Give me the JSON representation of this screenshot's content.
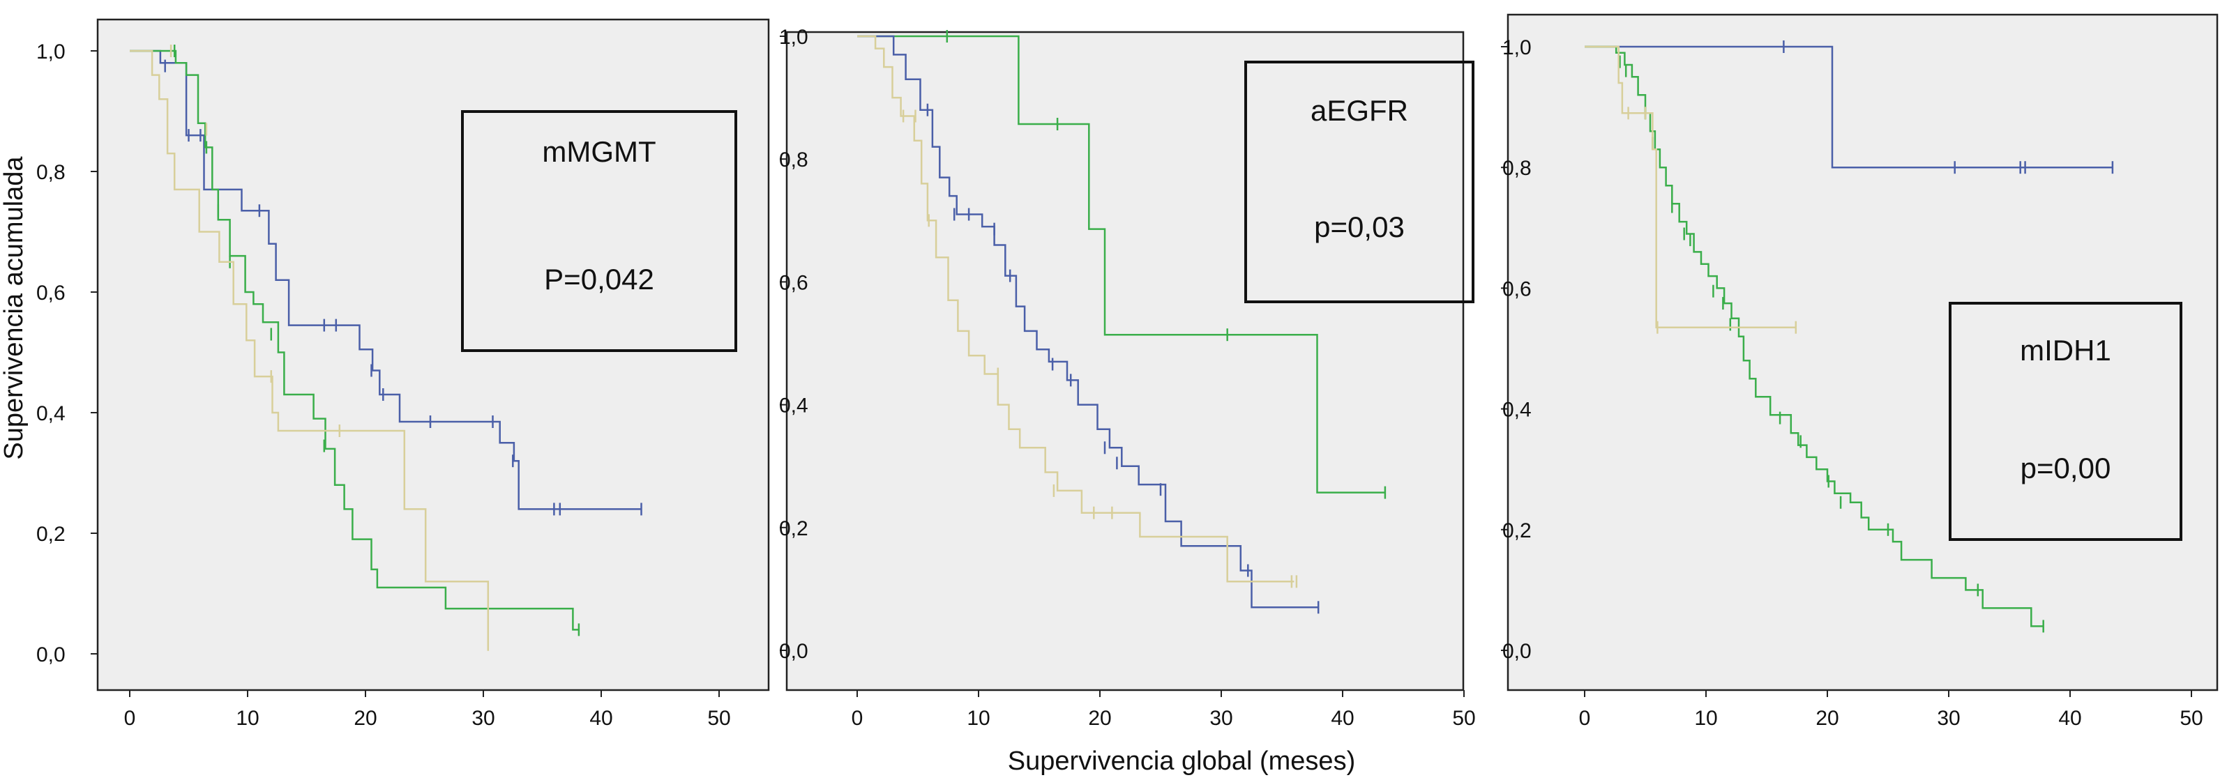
{
  "figure": {
    "ylabel": "Supervivencia acumulada",
    "xlabel": "Supervivencia global (meses)"
  },
  "colors": {
    "blue": "#4a5fa8",
    "green": "#3aae4a",
    "tan": "#d8cf9a",
    "panel_background": "#eeeeee",
    "frame": "#222222"
  },
  "chart_data": [
    {
      "type": "line",
      "subtype": "kaplan-meier",
      "panel_label": "mMGMT",
      "annotation": "P=0,042",
      "xlim": [
        0,
        50
      ],
      "ylim": [
        0,
        1
      ],
      "xticks": [
        "0",
        "10",
        "20",
        "30",
        "40",
        "50"
      ],
      "yticks": [
        "0,0",
        "0,2",
        "0,4",
        "0,6",
        "0,8",
        "1,0"
      ],
      "series": [
        {
          "color": "blue",
          "steps": [
            [
              0,
              1.0
            ],
            [
              2.6,
              0.98
            ],
            [
              4.8,
              0.86
            ],
            [
              6.3,
              0.77
            ],
            [
              9.5,
              0.735
            ],
            [
              11.8,
              0.68
            ],
            [
              12.4,
              0.62
            ],
            [
              13.5,
              0.545
            ],
            [
              19.5,
              0.505
            ],
            [
              20.6,
              0.47
            ],
            [
              21.2,
              0.43
            ],
            [
              22.9,
              0.385
            ],
            [
              31.4,
              0.35
            ],
            [
              32.6,
              0.32
            ],
            [
              33.0,
              0.24
            ],
            [
              43.4,
              0.24
            ]
          ],
          "censored": [
            [
              3.0,
              0.975
            ],
            [
              5.0,
              0.86
            ],
            [
              6.0,
              0.86
            ],
            [
              11.0,
              0.735
            ],
            [
              16.5,
              0.545
            ],
            [
              17.5,
              0.545
            ],
            [
              20.5,
              0.47
            ],
            [
              21.5,
              0.43
            ],
            [
              25.5,
              0.385
            ],
            [
              30.8,
              0.385
            ],
            [
              32.5,
              0.32
            ],
            [
              36.0,
              0.24
            ],
            [
              36.5,
              0.24
            ],
            [
              43.4,
              0.24
            ]
          ]
        },
        {
          "color": "green",
          "steps": [
            [
              0,
              1.0
            ],
            [
              3.9,
              0.98
            ],
            [
              4.8,
              0.96
            ],
            [
              5.8,
              0.88
            ],
            [
              6.4,
              0.84
            ],
            [
              7.0,
              0.77
            ],
            [
              7.5,
              0.72
            ],
            [
              8.5,
              0.66
            ],
            [
              9.8,
              0.6
            ],
            [
              10.5,
              0.58
            ],
            [
              11.3,
              0.55
            ],
            [
              12.6,
              0.5
            ],
            [
              13.1,
              0.43
            ],
            [
              15.6,
              0.39
            ],
            [
              16.6,
              0.34
            ],
            [
              17.4,
              0.28
            ],
            [
              18.2,
              0.24
            ],
            [
              18.9,
              0.19
            ],
            [
              20.5,
              0.14
            ],
            [
              21.0,
              0.11
            ],
            [
              26.8,
              0.075
            ],
            [
              37.6,
              0.04
            ],
            [
              38.1,
              0.04
            ]
          ],
          "censored": [
            [
              3.8,
              1.0
            ],
            [
              6.5,
              0.84
            ],
            [
              7.5,
              0.735
            ],
            [
              8.5,
              0.65
            ],
            [
              12.0,
              0.53
            ],
            [
              16.5,
              0.345
            ],
            [
              38.1,
              0.04
            ]
          ]
        },
        {
          "color": "tan",
          "steps": [
            [
              0,
              1.0
            ],
            [
              1.9,
              0.96
            ],
            [
              2.5,
              0.92
            ],
            [
              3.2,
              0.83
            ],
            [
              3.8,
              0.77
            ],
            [
              5.9,
              0.7
            ],
            [
              7.6,
              0.65
            ],
            [
              8.8,
              0.58
            ],
            [
              9.9,
              0.52
            ],
            [
              10.6,
              0.46
            ],
            [
              12.1,
              0.4
            ],
            [
              12.6,
              0.37
            ],
            [
              23.3,
              0.24
            ],
            [
              25.1,
              0.12
            ],
            [
              30.4,
              0.005
            ]
          ],
          "censored": [
            [
              3.5,
              1.0
            ],
            [
              6.5,
              0.87
            ],
            [
              12.0,
              0.46
            ],
            [
              17.8,
              0.37
            ]
          ]
        }
      ]
    },
    {
      "type": "line",
      "subtype": "kaplan-meier",
      "panel_label": "aEGFR",
      "annotation": "p=0,03",
      "xlim": [
        0,
        50
      ],
      "ylim": [
        0,
        1
      ],
      "xticks": [
        "0",
        "10",
        "20",
        "30",
        "40",
        "50"
      ],
      "yticks": [
        "0,0",
        "0,2",
        "0,4",
        "0,6",
        "0,8",
        "1,0"
      ],
      "series": [
        {
          "color": "green",
          "steps": [
            [
              0,
              1.0
            ],
            [
              13.3,
              0.857
            ],
            [
              19.1,
              0.686
            ],
            [
              20.4,
              0.514
            ],
            [
              37.9,
              0.257
            ],
            [
              43.5,
              0.257
            ]
          ],
          "censored": [
            [
              7.4,
              1.0
            ],
            [
              16.5,
              0.857
            ],
            [
              30.5,
              0.514
            ],
            [
              43.5,
              0.257
            ]
          ]
        },
        {
          "color": "blue",
          "steps": [
            [
              0,
              1.0
            ],
            [
              3.0,
              0.97
            ],
            [
              4.0,
              0.93
            ],
            [
              5.2,
              0.88
            ],
            [
              6.2,
              0.82
            ],
            [
              6.8,
              0.77
            ],
            [
              7.6,
              0.74
            ],
            [
              8.2,
              0.71
            ],
            [
              10.3,
              0.69
            ],
            [
              11.3,
              0.66
            ],
            [
              12.2,
              0.61
            ],
            [
              13.1,
              0.56
            ],
            [
              13.8,
              0.52
            ],
            [
              14.8,
              0.49
            ],
            [
              15.8,
              0.47
            ],
            [
              17.3,
              0.44
            ],
            [
              18.2,
              0.4
            ],
            [
              19.8,
              0.36
            ],
            [
              20.8,
              0.33
            ],
            [
              21.8,
              0.3
            ],
            [
              23.2,
              0.27
            ],
            [
              25.4,
              0.21
            ],
            [
              26.7,
              0.17
            ],
            [
              31.6,
              0.13
            ],
            [
              32.5,
              0.07
            ],
            [
              38.0,
              0.07
            ]
          ],
          "censored": [
            [
              5.8,
              0.88
            ],
            [
              8.0,
              0.71
            ],
            [
              9.2,
              0.71
            ],
            [
              11.3,
              0.686
            ],
            [
              12.6,
              0.61
            ],
            [
              16.1,
              0.466
            ],
            [
              17.6,
              0.44
            ],
            [
              20.4,
              0.33
            ],
            [
              21.4,
              0.305
            ],
            [
              25.0,
              0.262
            ],
            [
              32.2,
              0.13
            ],
            [
              38.0,
              0.07
            ]
          ]
        },
        {
          "color": "tan",
          "steps": [
            [
              0,
              1.0
            ],
            [
              1.5,
              0.98
            ],
            [
              2.2,
              0.95
            ],
            [
              2.9,
              0.9
            ],
            [
              3.6,
              0.87
            ],
            [
              4.7,
              0.83
            ],
            [
              5.3,
              0.76
            ],
            [
              5.8,
              0.7
            ],
            [
              6.5,
              0.64
            ],
            [
              7.5,
              0.57
            ],
            [
              8.3,
              0.52
            ],
            [
              9.2,
              0.48
            ],
            [
              10.5,
              0.45
            ],
            [
              11.6,
              0.4
            ],
            [
              12.5,
              0.36
            ],
            [
              13.4,
              0.33
            ],
            [
              15.5,
              0.29
            ],
            [
              16.5,
              0.26
            ],
            [
              18.5,
              0.224
            ],
            [
              23.3,
              0.185
            ],
            [
              30.5,
              0.112
            ],
            [
              36.0,
              0.112
            ]
          ],
          "censored": [
            [
              3.8,
              0.87
            ],
            [
              4.8,
              0.87
            ],
            [
              5.9,
              0.7
            ],
            [
              11.6,
              0.45
            ],
            [
              16.2,
              0.26
            ],
            [
              19.5,
              0.224
            ],
            [
              21.0,
              0.224
            ],
            [
              35.8,
              0.112
            ],
            [
              36.2,
              0.112
            ]
          ]
        }
      ]
    },
    {
      "type": "line",
      "subtype": "kaplan-meier",
      "panel_label": "mIDH1",
      "annotation": "p=0,00",
      "xlim": [
        0,
        50
      ],
      "ylim": [
        0,
        1
      ],
      "xticks": [
        "0",
        "10",
        "20",
        "30",
        "40",
        "50"
      ],
      "yticks": [
        "0,0",
        "0,2",
        "0,4",
        "0,6",
        "0,8",
        "1,0"
      ],
      "series": [
        {
          "color": "blue",
          "steps": [
            [
              0,
              1.0
            ],
            [
              20.4,
              0.8
            ],
            [
              43.5,
              0.8
            ]
          ],
          "censored": [
            [
              16.4,
              1.0
            ],
            [
              30.5,
              0.8
            ],
            [
              35.9,
              0.8
            ],
            [
              36.3,
              0.8
            ],
            [
              43.5,
              0.8
            ]
          ]
        },
        {
          "color": "green",
          "steps": [
            [
              0,
              1.0
            ],
            [
              2.6,
              0.99
            ],
            [
              3.3,
              0.97
            ],
            [
              3.9,
              0.95
            ],
            [
              4.4,
              0.92
            ],
            [
              5.0,
              0.89
            ],
            [
              5.4,
              0.86
            ],
            [
              5.8,
              0.83
            ],
            [
              6.2,
              0.8
            ],
            [
              6.7,
              0.77
            ],
            [
              7.2,
              0.74
            ],
            [
              7.8,
              0.71
            ],
            [
              8.4,
              0.69
            ],
            [
              9.0,
              0.66
            ],
            [
              9.6,
              0.64
            ],
            [
              10.2,
              0.62
            ],
            [
              10.9,
              0.6
            ],
            [
              11.5,
              0.575
            ],
            [
              12.1,
              0.55
            ],
            [
              12.7,
              0.52
            ],
            [
              13.1,
              0.48
            ],
            [
              13.6,
              0.45
            ],
            [
              14.1,
              0.42
            ],
            [
              15.3,
              0.39
            ],
            [
              17.0,
              0.36
            ],
            [
              17.6,
              0.34
            ],
            [
              18.3,
              0.32
            ],
            [
              19.1,
              0.3
            ],
            [
              20.0,
              0.28
            ],
            [
              20.6,
              0.26
            ],
            [
              21.9,
              0.245
            ],
            [
              22.8,
              0.22
            ],
            [
              23.4,
              0.2
            ],
            [
              25.4,
              0.18
            ],
            [
              26.1,
              0.15
            ],
            [
              28.6,
              0.12
            ],
            [
              31.4,
              0.1
            ],
            [
              32.8,
              0.07
            ],
            [
              36.8,
              0.04
            ],
            [
              37.8,
              0.04
            ]
          ],
          "censored": [
            [
              2.9,
              0.975
            ],
            [
              3.4,
              0.96
            ],
            [
              5.0,
              0.89
            ],
            [
              5.6,
              0.84
            ],
            [
              7.2,
              0.735
            ],
            [
              8.2,
              0.69
            ],
            [
              8.7,
              0.68
            ],
            [
              10.6,
              0.595
            ],
            [
              11.4,
              0.575
            ],
            [
              12.0,
              0.54
            ],
            [
              16.1,
              0.385
            ],
            [
              17.8,
              0.346
            ],
            [
              20.1,
              0.28
            ],
            [
              21.1,
              0.245
            ],
            [
              25.0,
              0.2
            ],
            [
              32.4,
              0.1
            ],
            [
              37.8,
              0.04
            ]
          ]
        },
        {
          "color": "tan",
          "steps": [
            [
              0,
              1.0
            ],
            [
              2.8,
              0.94
            ],
            [
              3.1,
              0.89
            ],
            [
              5.6,
              0.83
            ],
            [
              5.9,
              0.535
            ],
            [
              17.4,
              0.535
            ]
          ],
          "censored": [
            [
              3.6,
              0.89
            ],
            [
              5.0,
              0.89
            ],
            [
              6.0,
              0.535
            ],
            [
              17.4,
              0.535
            ]
          ]
        }
      ]
    }
  ]
}
